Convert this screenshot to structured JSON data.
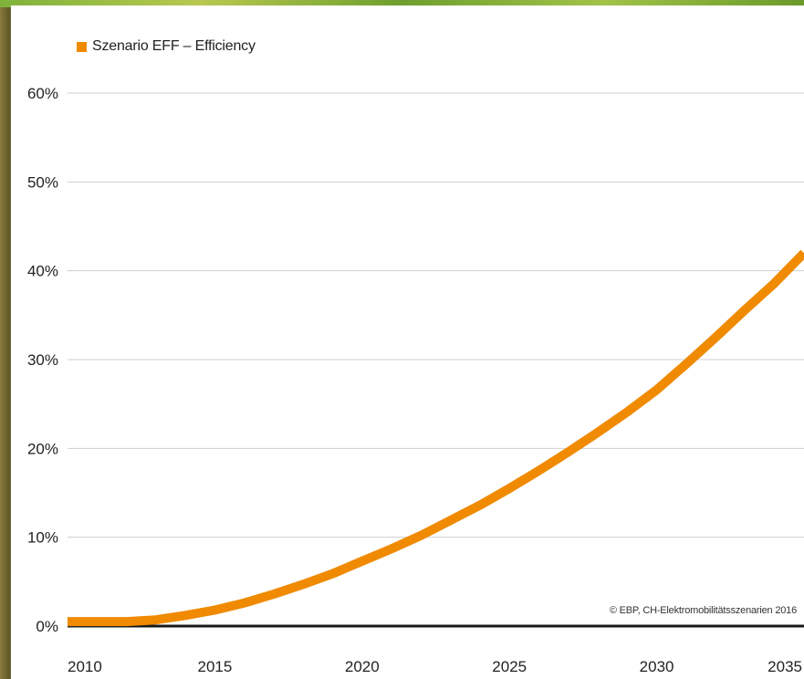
{
  "chart_data": {
    "type": "line",
    "title": "",
    "xlabel": "",
    "ylabel": "",
    "x_ticks": [
      "2010",
      "2015",
      "2020",
      "2025",
      "2030",
      "2035"
    ],
    "y_ticks": [
      "0%",
      "10%",
      "20%",
      "30%",
      "40%",
      "50%",
      "60%"
    ],
    "xlim": [
      2010,
      2035
    ],
    "ylim": [
      0,
      60
    ],
    "grid": true,
    "legend_placement": "top-left",
    "series": [
      {
        "name": "Szenario EFF – Efficiency",
        "color": "#f08a00",
        "x": [
          2010,
          2011,
          2012,
          2013,
          2014,
          2015,
          2016,
          2017,
          2018,
          2019,
          2020,
          2021,
          2022,
          2023,
          2024,
          2025,
          2026,
          2027,
          2028,
          2029,
          2030,
          2031,
          2032,
          2033,
          2034,
          2035
        ],
        "values": [
          0.5,
          0.5,
          0.5,
          0.7,
          1.2,
          1.8,
          2.6,
          3.6,
          4.7,
          5.9,
          7.3,
          8.7,
          10.2,
          11.9,
          13.6,
          15.5,
          17.5,
          19.6,
          21.8,
          24.1,
          26.6,
          29.5,
          32.5,
          35.6,
          38.6,
          42.0
        ]
      }
    ],
    "source_note": "© EBP, CH-Elektromobilitätsszenarien 2016"
  }
}
